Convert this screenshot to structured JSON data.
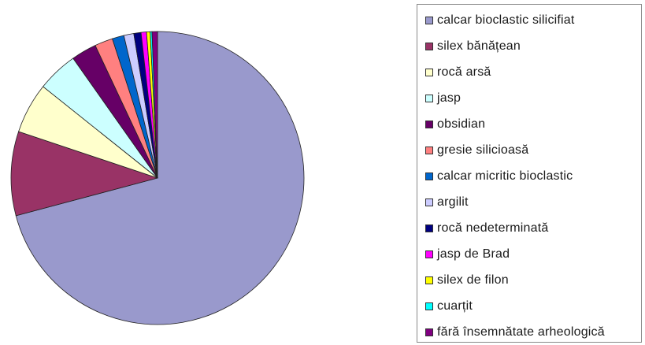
{
  "chart_data": {
    "type": "pie",
    "title": "",
    "start_angle_deg": 0,
    "direction": "clockwise",
    "legend_position": "right",
    "slices": [
      {
        "label": "calcar bioclastic silicifiat",
        "value": 71.0,
        "color": "#9999cc"
      },
      {
        "label": "silex bănățean",
        "value": 9.3,
        "color": "#993366"
      },
      {
        "label": "rocă arsă",
        "value": 5.6,
        "color": "#ffffcc"
      },
      {
        "label": "jasp",
        "value": 4.5,
        "color": "#ccffff"
      },
      {
        "label": "obsidian",
        "value": 2.8,
        "color": "#660066"
      },
      {
        "label": "gresie silicioasă",
        "value": 2.0,
        "color": "#ff8080"
      },
      {
        "label": "calcar micritic bioclastic",
        "value": 1.3,
        "color": "#0066cc"
      },
      {
        "label": "argilit",
        "value": 1.1,
        "color": "#ccccff"
      },
      {
        "label": "rocă nedeterminată",
        "value": 0.8,
        "color": "#000080"
      },
      {
        "label": "jasp de Brad",
        "value": 0.6,
        "color": "#ff00ff"
      },
      {
        "label": "silex de filon",
        "value": 0.4,
        "color": "#ffff00"
      },
      {
        "label": "cuarțit",
        "value": 0.2,
        "color": "#00ffff"
      },
      {
        "label": "fără însemnătate arheologică",
        "value": 0.6,
        "color": "#800080"
      }
    ]
  }
}
